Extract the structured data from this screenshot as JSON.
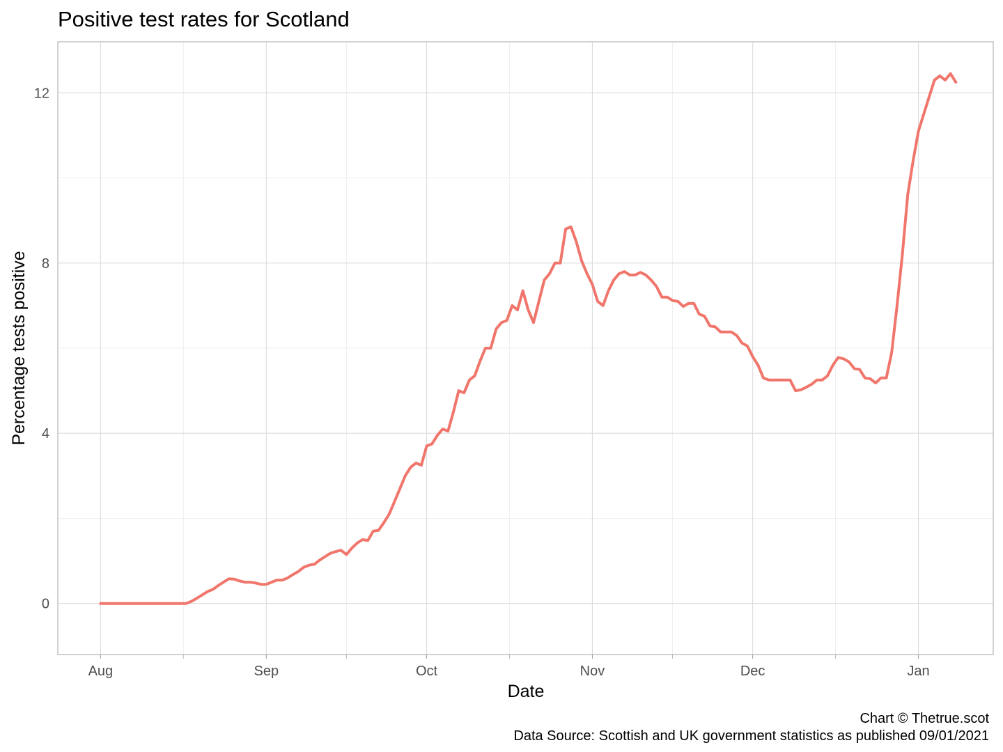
{
  "chart_data": {
    "type": "line",
    "title": "Positive test rates for Scotland",
    "xlabel": "Date",
    "ylabel": "Percentage tests positive",
    "caption": [
      "Chart © Thetrue.scot",
      "Data Source: Scottish and UK government statistics as published 09/01/2021"
    ],
    "x_tick_labels": [
      {
        "label": "Aug",
        "date": "2020-08-01"
      },
      {
        "label": "Sep",
        "date": "2020-09-01"
      },
      {
        "label": "Oct",
        "date": "2020-10-01"
      },
      {
        "label": "Nov",
        "date": "2020-11-01"
      },
      {
        "label": "Dec",
        "date": "2020-12-01"
      },
      {
        "label": "Jan",
        "date": "2021-01-01"
      }
    ],
    "xlim": [
      "2020-07-24",
      "2021-01-15"
    ],
    "y_ticks": [
      0,
      4,
      8,
      12
    ],
    "ylim": [
      -1.2,
      13.2
    ],
    "grid": true,
    "legend": "none",
    "colors": {
      "series": "#f0766c"
    },
    "series": [
      {
        "points": [
          [
            "2020-08-01",
            0
          ],
          [
            "2020-08-17",
            0
          ],
          [
            "2020-08-18",
            0.05
          ],
          [
            "2020-08-19",
            0.12
          ],
          [
            "2020-08-20",
            0.2
          ],
          [
            "2020-08-21",
            0.28
          ],
          [
            "2020-08-22",
            0.33
          ],
          [
            "2020-08-23",
            0.42
          ],
          [
            "2020-08-24",
            0.5
          ],
          [
            "2020-08-25",
            0.58
          ],
          [
            "2020-08-26",
            0.57
          ],
          [
            "2020-08-27",
            0.53
          ],
          [
            "2020-08-28",
            0.5
          ],
          [
            "2020-08-29",
            0.5
          ],
          [
            "2020-08-30",
            0.48
          ],
          [
            "2020-08-31",
            0.45
          ],
          [
            "2020-09-01",
            0.45
          ],
          [
            "2020-09-02",
            0.5
          ],
          [
            "2020-09-03",
            0.55
          ],
          [
            "2020-09-04",
            0.55
          ],
          [
            "2020-09-05",
            0.6
          ],
          [
            "2020-09-06",
            0.68
          ],
          [
            "2020-09-07",
            0.75
          ],
          [
            "2020-09-08",
            0.85
          ],
          [
            "2020-09-09",
            0.9
          ],
          [
            "2020-09-10",
            0.92
          ],
          [
            "2020-09-11",
            1.02
          ],
          [
            "2020-09-12",
            1.1
          ],
          [
            "2020-09-13",
            1.18
          ],
          [
            "2020-09-14",
            1.22
          ],
          [
            "2020-09-15",
            1.25
          ],
          [
            "2020-09-16",
            1.15
          ],
          [
            "2020-09-17",
            1.3
          ],
          [
            "2020-09-18",
            1.42
          ],
          [
            "2020-09-19",
            1.5
          ],
          [
            "2020-09-20",
            1.48
          ],
          [
            "2020-09-21",
            1.7
          ],
          [
            "2020-09-22",
            1.72
          ],
          [
            "2020-09-23",
            1.9
          ],
          [
            "2020-09-24",
            2.1
          ],
          [
            "2020-09-25",
            2.4
          ],
          [
            "2020-09-26",
            2.7
          ],
          [
            "2020-09-27",
            3.0
          ],
          [
            "2020-09-28",
            3.2
          ],
          [
            "2020-09-29",
            3.3
          ],
          [
            "2020-09-30",
            3.25
          ],
          [
            "2020-10-01",
            3.7
          ],
          [
            "2020-10-02",
            3.75
          ],
          [
            "2020-10-03",
            3.95
          ],
          [
            "2020-10-04",
            4.1
          ],
          [
            "2020-10-05",
            4.05
          ],
          [
            "2020-10-06",
            4.5
          ],
          [
            "2020-10-07",
            5.0
          ],
          [
            "2020-10-08",
            4.95
          ],
          [
            "2020-10-09",
            5.25
          ],
          [
            "2020-10-10",
            5.35
          ],
          [
            "2020-10-11",
            5.7
          ],
          [
            "2020-10-12",
            6.0
          ],
          [
            "2020-10-13",
            6.0
          ],
          [
            "2020-10-14",
            6.45
          ],
          [
            "2020-10-15",
            6.6
          ],
          [
            "2020-10-16",
            6.65
          ],
          [
            "2020-10-17",
            7.0
          ],
          [
            "2020-10-18",
            6.9
          ],
          [
            "2020-10-19",
            7.35
          ],
          [
            "2020-10-20",
            6.9
          ],
          [
            "2020-10-21",
            6.6
          ],
          [
            "2020-10-22",
            7.1
          ],
          [
            "2020-10-23",
            7.6
          ],
          [
            "2020-10-24",
            7.75
          ],
          [
            "2020-10-25",
            8.0
          ],
          [
            "2020-10-26",
            8.0
          ],
          [
            "2020-10-27",
            8.8
          ],
          [
            "2020-10-28",
            8.85
          ],
          [
            "2020-10-29",
            8.5
          ],
          [
            "2020-10-30",
            8.05
          ],
          [
            "2020-10-31",
            7.75
          ],
          [
            "2020-11-01",
            7.5
          ],
          [
            "2020-11-02",
            7.1
          ],
          [
            "2020-11-03",
            7.0
          ],
          [
            "2020-11-04",
            7.35
          ],
          [
            "2020-11-05",
            7.6
          ],
          [
            "2020-11-06",
            7.75
          ],
          [
            "2020-11-07",
            7.8
          ],
          [
            "2020-11-08",
            7.72
          ],
          [
            "2020-11-09",
            7.72
          ],
          [
            "2020-11-10",
            7.78
          ],
          [
            "2020-11-11",
            7.72
          ],
          [
            "2020-11-12",
            7.6
          ],
          [
            "2020-11-13",
            7.45
          ],
          [
            "2020-11-14",
            7.2
          ],
          [
            "2020-11-15",
            7.2
          ],
          [
            "2020-11-16",
            7.12
          ],
          [
            "2020-11-17",
            7.1
          ],
          [
            "2020-11-18",
            6.98
          ],
          [
            "2020-11-19",
            7.05
          ],
          [
            "2020-11-20",
            7.05
          ],
          [
            "2020-11-21",
            6.8
          ],
          [
            "2020-11-22",
            6.75
          ],
          [
            "2020-11-23",
            6.52
          ],
          [
            "2020-11-24",
            6.5
          ],
          [
            "2020-11-25",
            6.38
          ],
          [
            "2020-11-26",
            6.38
          ],
          [
            "2020-11-27",
            6.38
          ],
          [
            "2020-11-28",
            6.3
          ],
          [
            "2020-11-29",
            6.12
          ],
          [
            "2020-11-30",
            6.05
          ],
          [
            "2020-12-01",
            5.8
          ],
          [
            "2020-12-02",
            5.6
          ],
          [
            "2020-12-03",
            5.3
          ],
          [
            "2020-12-04",
            5.25
          ],
          [
            "2020-12-05",
            5.25
          ],
          [
            "2020-12-06",
            5.25
          ],
          [
            "2020-12-07",
            5.25
          ],
          [
            "2020-12-08",
            5.25
          ],
          [
            "2020-12-09",
            5.0
          ],
          [
            "2020-12-10",
            5.02
          ],
          [
            "2020-12-11",
            5.08
          ],
          [
            "2020-12-12",
            5.15
          ],
          [
            "2020-12-13",
            5.25
          ],
          [
            "2020-12-14",
            5.25
          ],
          [
            "2020-12-15",
            5.35
          ],
          [
            "2020-12-16",
            5.6
          ],
          [
            "2020-12-17",
            5.78
          ],
          [
            "2020-12-18",
            5.75
          ],
          [
            "2020-12-19",
            5.68
          ],
          [
            "2020-12-20",
            5.52
          ],
          [
            "2020-12-21",
            5.5
          ],
          [
            "2020-12-22",
            5.3
          ],
          [
            "2020-12-23",
            5.28
          ],
          [
            "2020-12-24",
            5.18
          ],
          [
            "2020-12-25",
            5.3
          ],
          [
            "2020-12-26",
            5.3
          ],
          [
            "2020-12-27",
            5.9
          ],
          [
            "2020-12-28",
            7.0
          ],
          [
            "2020-12-29",
            8.2
          ],
          [
            "2020-12-30",
            9.6
          ],
          [
            "2020-12-31",
            10.4
          ],
          [
            "2021-01-01",
            11.1
          ],
          [
            "2021-01-02",
            11.5
          ],
          [
            "2021-01-03",
            11.9
          ],
          [
            "2021-01-04",
            12.3
          ],
          [
            "2021-01-05",
            12.4
          ],
          [
            "2021-01-06",
            12.3
          ],
          [
            "2021-01-07",
            12.45
          ],
          [
            "2021-01-08",
            12.25
          ]
        ]
      }
    ]
  }
}
